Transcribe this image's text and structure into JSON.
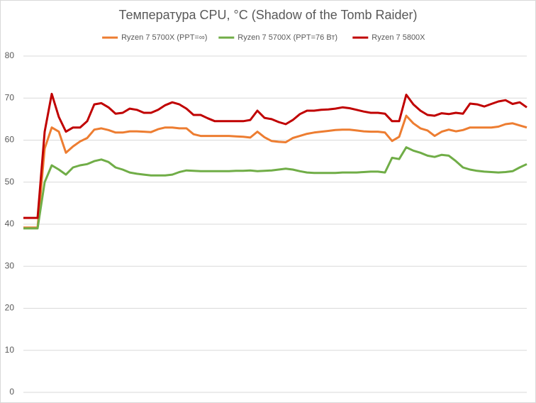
{
  "chart_data": {
    "type": "line",
    "title": "Температура CPU, °C (Shadow of the Tomb Raider)",
    "ylim": [
      0,
      80
    ],
    "yticks": [
      0,
      10,
      20,
      30,
      40,
      50,
      60,
      70,
      80
    ],
    "grid": true,
    "legend": "top",
    "series": [
      {
        "name": "Ryzen 7 5700X (PPT=∞)",
        "color": "#ed7d31",
        "values": [
          39.2,
          39.2,
          39.2,
          58,
          63,
          62,
          57,
          58.5,
          59.7,
          60.5,
          62.5,
          62.8,
          62.4,
          61.8,
          61.8,
          62.1,
          62.1,
          62,
          61.9,
          62.6,
          63,
          63,
          62.8,
          62.8,
          61.4,
          61,
          61,
          61,
          61,
          61,
          60.9,
          60.8,
          60.6,
          62,
          60.7,
          59.8,
          59.6,
          59.5,
          60.5,
          61,
          61.5,
          61.8,
          62,
          62.2,
          62.4,
          62.5,
          62.5,
          62.3,
          62.1,
          62,
          62,
          61.8,
          59.8,
          60.8,
          65.8,
          64,
          62.8,
          62.3,
          61,
          62,
          62.5,
          62.1,
          62.4,
          63,
          63,
          63,
          63,
          63.2,
          63.8,
          64,
          63.5,
          63
        ]
      },
      {
        "name": "Ryzen 7 5700X (PPT=76 Вт)",
        "color": "#70ad47",
        "values": [
          39,
          39,
          39,
          50,
          54,
          53,
          51.8,
          53.5,
          54,
          54.3,
          55,
          55.4,
          54.8,
          53.5,
          53,
          52.3,
          52,
          51.8,
          51.6,
          51.6,
          51.6,
          51.8,
          52.4,
          52.8,
          52.7,
          52.6,
          52.6,
          52.6,
          52.6,
          52.6,
          52.7,
          52.7,
          52.8,
          52.6,
          52.7,
          52.8,
          53,
          53.2,
          53,
          52.6,
          52.3,
          52.2,
          52.2,
          52.2,
          52.2,
          52.3,
          52.3,
          52.3,
          52.4,
          52.5,
          52.5,
          52.3,
          55.8,
          55.5,
          58.3,
          57.5,
          57,
          56.3,
          56,
          56.5,
          56.3,
          55,
          53.5,
          53,
          52.7,
          52.5,
          52.4,
          52.3,
          52.4,
          52.6,
          53.5,
          54.3
        ]
      },
      {
        "name": "Ryzen 7 5800X",
        "color": "#c00000",
        "values": [
          41.5,
          41.5,
          41.5,
          62,
          71,
          65.5,
          62,
          63,
          63,
          64.5,
          68.5,
          68.8,
          67.8,
          66.3,
          66.5,
          67.5,
          67.2,
          66.5,
          66.5,
          67.2,
          68.3,
          69,
          68.5,
          67.5,
          66,
          66,
          65.2,
          64.5,
          64.5,
          64.5,
          64.5,
          64.5,
          64.8,
          67,
          65.3,
          65,
          64.3,
          63.8,
          64.8,
          66.2,
          67,
          67,
          67.2,
          67.3,
          67.5,
          67.8,
          67.6,
          67.2,
          66.8,
          66.5,
          66.5,
          66.3,
          64.5,
          64.5,
          70.8,
          68.5,
          67,
          66,
          65.8,
          66.4,
          66.2,
          66.5,
          66.3,
          68.7,
          68.5,
          68,
          68.6,
          69.2,
          69.5,
          68.6,
          69,
          67.8
        ]
      }
    ]
  }
}
